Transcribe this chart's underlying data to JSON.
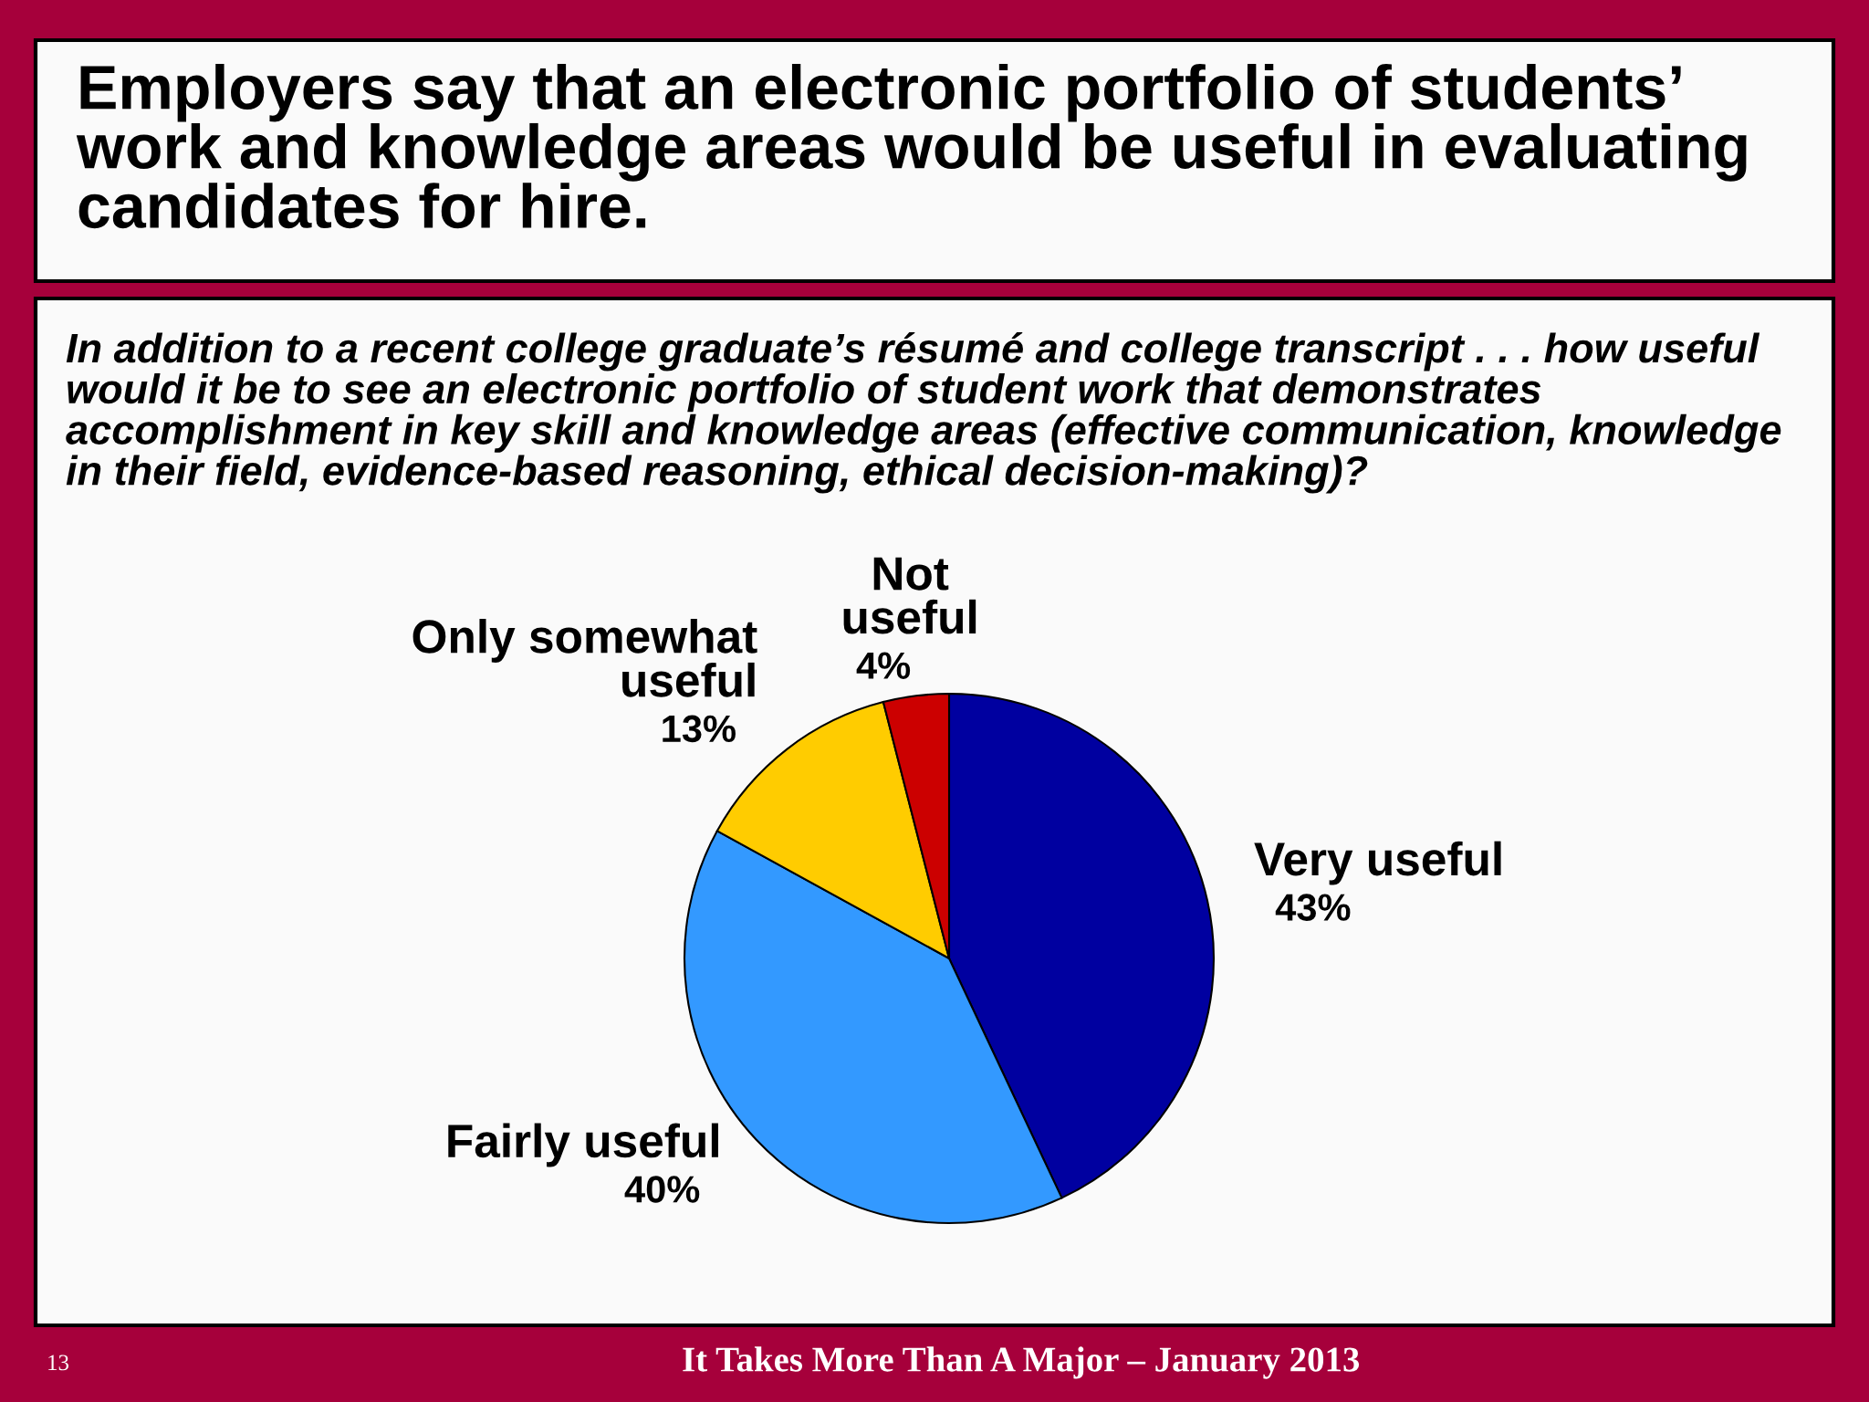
{
  "chart_data": {
    "type": "pie",
    "title": "Employers say that an electronic portfolio of students’\nwork and knowledge areas would be useful in evaluating\ncandidates for hire.",
    "subtitle": "In addition to a recent college graduate’s résumé and college transcript . . . how useful\nwould it be to see an electronic portfolio of student work that demonstrates\naccomplishment in key skill and knowledge areas (effective communication, knowledge\nin their field, evidence-based reasoning, ethical decision-making)?",
    "categories": [
      "Very useful",
      "Fairly useful",
      "Only somewhat\nuseful",
      "Not\nuseful"
    ],
    "values": [
      43,
      40,
      13,
      4
    ],
    "colors": [
      "#0000a0",
      "#3399ff",
      "#ffcc00",
      "#cc0000"
    ],
    "value_labels": [
      "43%",
      "40%",
      "13%",
      "4%"
    ],
    "annotations": [
      "13",
      "It Takes More Than A Major – January 2013"
    ]
  }
}
